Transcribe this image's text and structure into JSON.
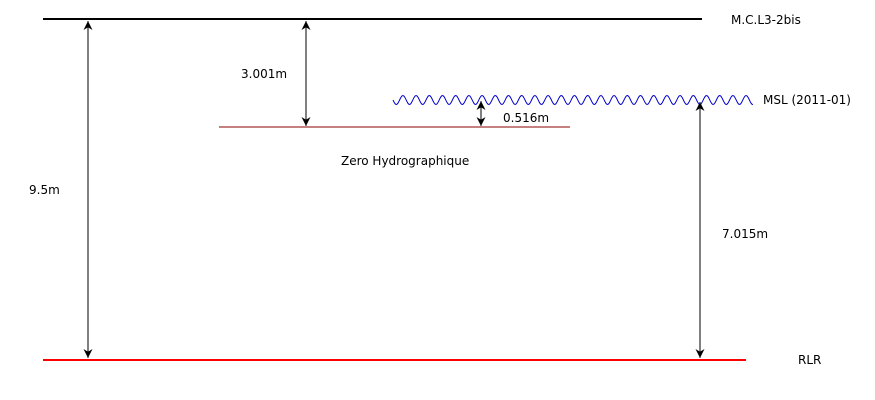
{
  "levels": {
    "benchmark": {
      "label": "M.C.L3-2bis",
      "color": "#000000"
    },
    "msl": {
      "label": "MSL (2011-01)",
      "color": "#0000cc"
    },
    "chart_datum": {
      "label": "Zero Hydrographique",
      "color": "#8b0000"
    },
    "rlr": {
      "label": "RLR",
      "color": "#ff0000"
    }
  },
  "measurements": {
    "benchmark_to_rlr": "9.5m",
    "benchmark_to_chart_datum": "3.001m",
    "chart_datum_to_msl": "0.516m",
    "msl_to_rlr": "7.015m"
  },
  "colors": {
    "arrow": "#000000",
    "background": "#ffffff"
  }
}
